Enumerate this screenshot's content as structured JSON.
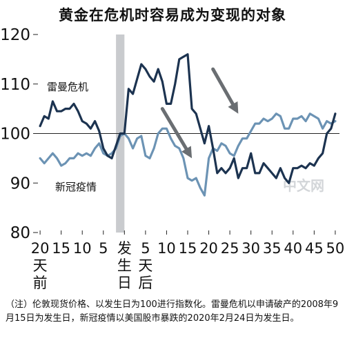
{
  "title": "黄金在危机时容易成为变现的对象",
  "note": "（注）伦敦现货价格、以发生日为100进行指数化。雷曼危机以申请破产的2008年9月15日为发生日，新冠疫情以美国股市暴跌的2020年2月24日为发生日。",
  "watermark": "中文网",
  "chart_data": {
    "type": "line",
    "title": "黄金在危机时容易成为变现的对象",
    "ylim": [
      80,
      120
    ],
    "yticks": [
      80,
      90,
      100,
      110,
      120
    ],
    "xlim": [
      -21,
      51
    ],
    "xticks": [
      {
        "x": -20,
        "label": "20"
      },
      {
        "x": -15,
        "label": "15"
      },
      {
        "x": -10,
        "label": "10"
      },
      {
        "x": -5,
        "label": "5"
      },
      {
        "x": 0,
        "label": "发"
      },
      {
        "x": 5,
        "label": "5"
      },
      {
        "x": 10,
        "label": "10"
      },
      {
        "x": 15,
        "label": "15"
      },
      {
        "x": 20,
        "label": "20"
      },
      {
        "x": 25,
        "label": "25"
      },
      {
        "x": 30,
        "label": "30"
      },
      {
        "x": 35,
        "label": "35"
      },
      {
        "x": 40,
        "label": "40"
      },
      {
        "x": 45,
        "label": "45"
      },
      {
        "x": 50,
        "label": "50"
      }
    ],
    "before_label": [
      "天",
      "前"
    ],
    "event_label": [
      "生",
      "日"
    ],
    "after_label": [
      "天",
      "后"
    ],
    "shaded_range": [
      -2,
      0
    ],
    "reference_line": 100,
    "series": [
      {
        "name": "雷曼危机",
        "color": "#1c3350",
        "x": [
          -20,
          -19,
          -18,
          -17,
          -16,
          -15,
          -14,
          -13,
          -12,
          -11,
          -10,
          -9,
          -8,
          -7,
          -6,
          -5,
          -4,
          -3,
          -2,
          -1,
          0,
          1,
          2,
          3,
          4,
          5,
          6,
          7,
          8,
          9,
          10,
          11,
          12,
          13,
          14,
          15,
          16,
          17,
          18,
          19,
          20,
          21,
          22,
          23,
          24,
          25,
          26,
          27,
          28,
          29,
          30,
          31,
          32,
          33,
          34,
          35,
          36,
          37,
          38,
          39,
          40,
          41,
          42,
          43,
          44,
          45,
          46,
          47,
          48,
          49,
          50
        ],
        "y": [
          101.5,
          103.5,
          103,
          106.5,
          104.5,
          104.5,
          105,
          105,
          106,
          104.5,
          102.5,
          102,
          101,
          102.5,
          100.5,
          97,
          95.5,
          95,
          97.5,
          100,
          100,
          109,
          108,
          111,
          114,
          113,
          111.5,
          110.5,
          113,
          110.5,
          106,
          106,
          110,
          115,
          115.5,
          116,
          105,
          104,
          101,
          98,
          101.5,
          97,
          92,
          93,
          92,
          93,
          95,
          91,
          93,
          93,
          96,
          92,
          92,
          94,
          93,
          92,
          91,
          93,
          91,
          90,
          93,
          93,
          93.5,
          93,
          94,
          93.5,
          95,
          96,
          100,
          101,
          104
        ]
      },
      {
        "name": "新冠疫情",
        "color": "#6c93b4",
        "x": [
          -20,
          -19,
          -18,
          -17,
          -16,
          -15,
          -14,
          -13,
          -12,
          -11,
          -10,
          -9,
          -8,
          -7,
          -6,
          -5,
          -4,
          -3,
          -2,
          -1,
          0,
          1,
          2,
          3,
          4,
          5,
          6,
          7,
          8,
          9,
          10,
          11,
          12,
          13,
          14,
          15,
          16,
          17,
          18,
          19,
          20,
          21,
          22,
          23,
          24,
          25,
          26,
          27,
          28,
          29,
          30,
          31,
          32,
          33,
          34,
          35,
          36,
          37,
          38,
          39,
          40,
          41,
          42,
          43,
          44,
          45,
          46,
          47,
          48,
          49,
          50
        ],
        "y": [
          95,
          94,
          95,
          96,
          95,
          93.5,
          94,
          95,
          95,
          96,
          95.5,
          96,
          95.5,
          97,
          98,
          96,
          95.5,
          96,
          97,
          99.5,
          100,
          99,
          97,
          99,
          99.5,
          95.5,
          95,
          97,
          100,
          101,
          101,
          99,
          97.5,
          97,
          95,
          91,
          90.5,
          91,
          89,
          87.5,
          95,
          97,
          96.5,
          98,
          97.5,
          96,
          95.5,
          97.5,
          99,
          99,
          100.5,
          102,
          102,
          103,
          102.5,
          103,
          104,
          103.5,
          101,
          101,
          103,
          103,
          103.5,
          102.5,
          104,
          103.5,
          103,
          101,
          102.5,
          102,
          102.5
        ]
      }
    ],
    "annotations": [
      {
        "type": "arrow",
        "from": [
          21,
          113
        ],
        "to": [
          27,
          104
        ]
      },
      {
        "type": "arrow",
        "from": [
          9,
          105
        ],
        "to": [
          16,
          95
        ]
      }
    ]
  }
}
